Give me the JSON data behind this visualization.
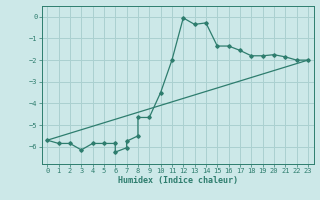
{
  "xlabel": "Humidex (Indice chaleur)",
  "ylabel": "",
  "background_color": "#cce8e8",
  "grid_color": "#aad0d0",
  "line_color": "#2e7d6e",
  "xlim": [
    -0.5,
    23.5
  ],
  "ylim": [
    -6.8,
    0.5
  ],
  "xticks": [
    0,
    1,
    2,
    3,
    4,
    5,
    6,
    7,
    8,
    9,
    10,
    11,
    12,
    13,
    14,
    15,
    16,
    17,
    18,
    19,
    20,
    21,
    22,
    23
  ],
  "yticks": [
    0,
    -1,
    -2,
    -3,
    -4,
    -5,
    -6
  ],
  "line1_x": [
    0,
    1,
    2,
    3,
    4,
    5,
    6,
    6,
    7,
    7,
    8,
    8,
    9,
    10,
    11,
    12,
    13,
    14,
    15,
    16,
    17,
    18,
    19,
    20,
    21,
    22,
    23
  ],
  "line1_y": [
    -5.7,
    -5.85,
    -5.85,
    -6.15,
    -5.85,
    -5.85,
    -5.85,
    -6.25,
    -6.05,
    -5.75,
    -5.5,
    -4.65,
    -4.65,
    -3.5,
    -2.0,
    -0.05,
    -0.35,
    -0.28,
    -1.35,
    -1.35,
    -1.55,
    -1.8,
    -1.8,
    -1.75,
    -1.85,
    -2.0,
    -2.0
  ],
  "line2_x": [
    0,
    23
  ],
  "line2_y": [
    -5.7,
    -2.0
  ],
  "figsize": [
    3.2,
    2.0
  ],
  "dpi": 100
}
